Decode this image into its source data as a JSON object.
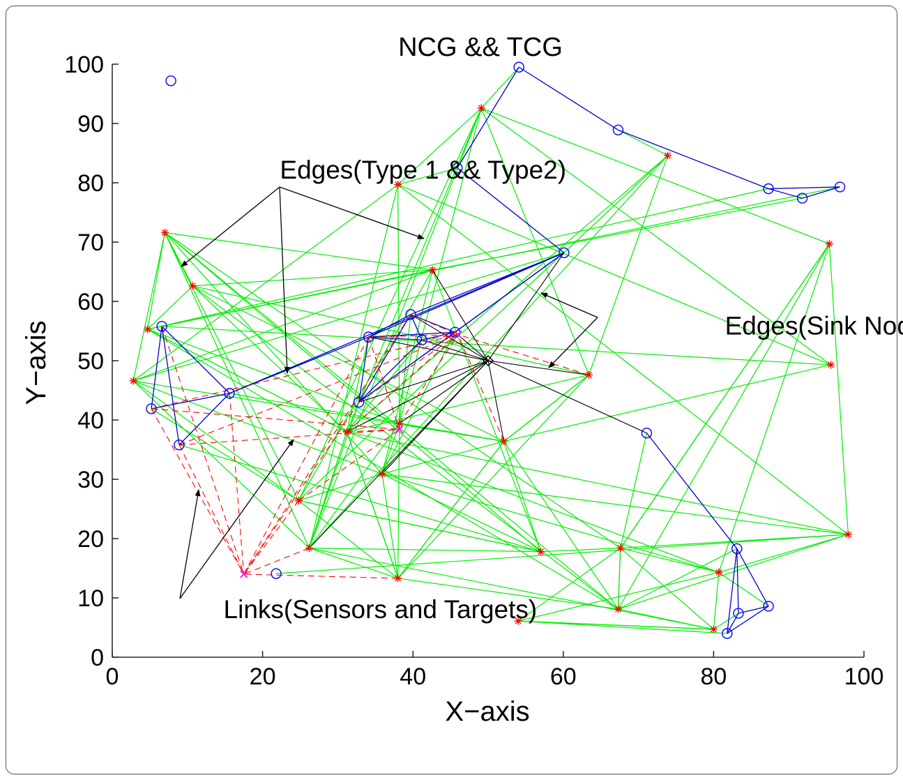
{
  "chart_data": {
    "type": "scatter",
    "title": "NCG && TCG",
    "xlabel": "X−axis",
    "ylabel": "Y−axis",
    "xlim": [
      0,
      100
    ],
    "ylim": [
      0,
      100
    ],
    "xticks": [
      0,
      20,
      40,
      60,
      80,
      100
    ],
    "yticks": [
      0,
      10,
      20,
      30,
      40,
      50,
      60,
      70,
      80,
      90,
      100
    ],
    "grid": false,
    "annotations": [
      {
        "text": "Edges(Type 1 && Type2)",
        "x": 22.3,
        "y": 80.7
      },
      {
        "text": "Edges(Sink Node)",
        "x": 81.5,
        "y": 54.4
      },
      {
        "text": "Links(Sensors and Targets)",
        "x": 14.8,
        "y": 6.6
      }
    ],
    "colors": {
      "type1": "#0000ff",
      "type2": "#ff0000",
      "type1_edge": "#0000cc",
      "type2_edge": "#00ee00",
      "sink": "#000000",
      "link": "#ff0000",
      "target": "#ff00ff"
    },
    "series": [
      {
        "key": "type1",
        "marker": "circle",
        "points": [
          [
            7.8,
            97.2
          ],
          [
            54.1,
            99.5
          ],
          [
            67.3,
            88.9
          ],
          [
            45.9,
            82.5
          ],
          [
            87.3,
            79.0
          ],
          [
            91.8,
            77.4
          ],
          [
            96.8,
            79.3
          ],
          [
            60.1,
            68.2
          ],
          [
            6.6,
            55.8
          ],
          [
            39.7,
            57.8
          ],
          [
            34.1,
            54.0
          ],
          [
            41.2,
            53.5
          ],
          [
            45.6,
            54.8
          ],
          [
            15.6,
            44.5
          ],
          [
            5.2,
            41.9
          ],
          [
            32.8,
            43.0
          ],
          [
            8.9,
            35.8
          ],
          [
            71.1,
            37.8
          ],
          [
            21.8,
            14.1
          ],
          [
            83.1,
            18.3
          ],
          [
            87.3,
            8.6
          ],
          [
            83.3,
            7.4
          ],
          [
            81.8,
            4.0
          ]
        ]
      },
      {
        "key": "type2",
        "marker": "star",
        "points": [
          [
            49.1,
            92.6
          ],
          [
            73.9,
            84.6
          ],
          [
            38.0,
            79.7
          ],
          [
            95.4,
            69.7
          ],
          [
            7.0,
            71.6
          ],
          [
            10.7,
            62.6
          ],
          [
            42.6,
            65.3
          ],
          [
            4.7,
            55.3
          ],
          [
            2.8,
            46.6
          ],
          [
            95.6,
            49.3
          ],
          [
            63.4,
            47.6
          ],
          [
            38.2,
            39.4
          ],
          [
            31.2,
            38.0
          ],
          [
            52.1,
            36.4
          ],
          [
            35.9,
            30.9
          ],
          [
            24.8,
            26.4
          ],
          [
            26.2,
            18.4
          ],
          [
            38.0,
            13.3
          ],
          [
            57.0,
            17.8
          ],
          [
            67.6,
            18.4
          ],
          [
            97.9,
            20.7
          ],
          [
            80.7,
            14.3
          ],
          [
            67.3,
            8.1
          ],
          [
            54.0,
            6.1
          ],
          [
            80.0,
            4.7
          ]
        ]
      },
      {
        "key": "sink",
        "marker": "diamond",
        "points": [
          [
            50,
            50
          ]
        ]
      },
      {
        "key": "target",
        "marker": "cross",
        "points": [
          [
            17.5,
            14.0
          ],
          [
            38.2,
            38.4
          ],
          [
            46.0,
            54.4
          ]
        ]
      }
    ]
  }
}
